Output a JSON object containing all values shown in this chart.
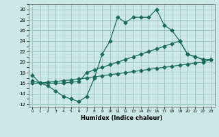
{
  "xlabel": "Humidex (Indice chaleur)",
  "bg_color": "#cce8e6",
  "grid_color_major": "#a0c8c4",
  "grid_color_minor": "#b8d8d4",
  "line_color": "#1a6b5a",
  "xlim": [
    -0.5,
    23.5
  ],
  "ylim": [
    11.5,
    31
  ],
  "yticks": [
    12,
    14,
    16,
    18,
    20,
    22,
    24,
    26,
    28,
    30
  ],
  "line1_x": [
    0,
    1,
    2,
    3,
    4,
    5,
    6,
    7,
    8,
    9,
    10,
    11,
    12,
    13,
    14,
    15,
    16,
    17,
    18,
    19,
    20,
    21,
    22,
    23
  ],
  "line1_y": [
    17.5,
    16.0,
    15.5,
    14.5,
    13.5,
    13.0,
    12.5,
    13.5,
    17.0,
    21.5,
    24.0,
    28.5,
    27.5,
    28.5,
    28.5,
    28.5,
    30.0,
    27.0,
    26.0,
    24.0,
    21.5,
    21.0,
    20.5,
    20.5
  ],
  "line2_x": [
    0,
    1,
    2,
    3,
    4,
    5,
    6,
    7,
    8,
    9,
    10,
    11,
    12,
    13,
    14,
    15,
    16,
    17,
    18,
    19,
    20,
    21,
    22,
    23
  ],
  "line2_y": [
    16.5,
    16.0,
    16.0,
    16.0,
    16.0,
    16.2,
    16.3,
    18.0,
    18.5,
    19.0,
    19.5,
    20.0,
    20.5,
    21.0,
    21.5,
    22.0,
    22.5,
    23.0,
    23.5,
    24.0,
    21.5,
    21.0,
    20.5,
    20.5
  ],
  "line3_x": [
    0,
    1,
    2,
    3,
    4,
    5,
    6,
    7,
    8,
    9,
    10,
    11,
    12,
    13,
    14,
    15,
    16,
    17,
    18,
    19,
    20,
    21,
    22,
    23
  ],
  "line3_y": [
    16.0,
    16.0,
    16.2,
    16.3,
    16.5,
    16.6,
    16.8,
    17.0,
    17.2,
    17.4,
    17.6,
    17.8,
    18.0,
    18.2,
    18.4,
    18.6,
    18.8,
    19.0,
    19.2,
    19.4,
    19.6,
    19.8,
    20.0,
    20.5
  ]
}
